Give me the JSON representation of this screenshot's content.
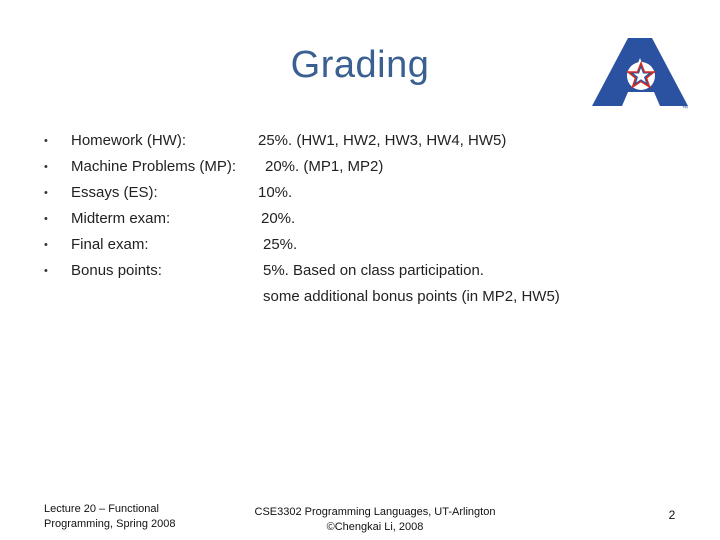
{
  "slide": {
    "title": "Grading",
    "items": [
      {
        "label": "Homework (HW):",
        "value": "25%.   (HW1, HW2, HW3, HW4, HW5)"
      },
      {
        "label": "Machine Problems (MP):",
        "value": "20%.   (MP1, MP2)"
      },
      {
        "label": "Essays (ES):",
        "value": "10%."
      },
      {
        "label": "Midterm exam:",
        "value": "20%."
      },
      {
        "label": "Final exam:",
        "value": "25%."
      },
      {
        "label": "Bonus points:",
        "value": "5%.   Based on class participation."
      }
    ],
    "bonus_note": "some additional bonus points (in MP2, HW5)",
    "bullet_char": "•",
    "logo": {
      "icon": "ut-arlington-a-star-logo",
      "colors": {
        "blue": "#2a52a0",
        "star": "#ffffff",
        "red": "#d52b1e"
      },
      "trademark": "™"
    }
  },
  "footer": {
    "left_line1": "Lecture 20 – Functional",
    "left_line2": "Programming, Spring 2008",
    "center_line1": "CSE3302 Programming Languages, UT-Arlington",
    "center_line2": "©Chengkai Li, 2008",
    "page_number": "2"
  }
}
